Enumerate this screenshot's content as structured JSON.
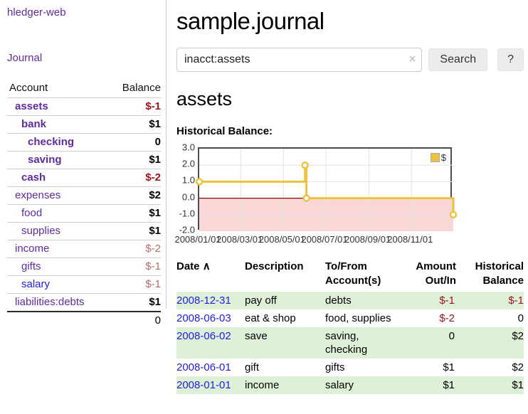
{
  "app": {
    "brand": "hledger-web",
    "nav_journal": "Journal"
  },
  "sidebar": {
    "header": {
      "account": "Account",
      "balance": "Balance"
    },
    "rows": [
      {
        "name": "assets",
        "depth": 1,
        "name_bold": true,
        "name_class": "",
        "balance": "$-1",
        "balance_bold": true,
        "balance_class": "neg-strong"
      },
      {
        "name": "bank",
        "depth": 2,
        "name_bold": true,
        "name_class": "",
        "balance": "$1",
        "balance_bold": true,
        "balance_class": ""
      },
      {
        "name": "checking",
        "depth": 3,
        "name_bold": true,
        "name_class": "",
        "balance": "0",
        "balance_bold": true,
        "balance_class": ""
      },
      {
        "name": "saving",
        "depth": 3,
        "name_bold": true,
        "name_class": "",
        "balance": "$1",
        "balance_bold": true,
        "balance_class": ""
      },
      {
        "name": "cash",
        "depth": 2,
        "name_bold": true,
        "name_class": "",
        "balance": "$-2",
        "balance_bold": true,
        "balance_class": "neg-strong"
      },
      {
        "name": "expenses",
        "depth": 1,
        "name_bold": false,
        "name_class": "",
        "balance": "$2",
        "balance_bold": true,
        "balance_class": ""
      },
      {
        "name": "food",
        "depth": 2,
        "name_bold": false,
        "name_class": "",
        "balance": "$1",
        "balance_bold": true,
        "balance_class": ""
      },
      {
        "name": "supplies",
        "depth": 2,
        "name_bold": false,
        "name_class": "",
        "balance": "$1",
        "balance_bold": true,
        "balance_class": ""
      },
      {
        "name": "income",
        "depth": 1,
        "name_bold": false,
        "name_class": "",
        "balance": "$-2",
        "balance_bold": false,
        "balance_class": "neg-muted"
      },
      {
        "name": "gifts",
        "depth": 2,
        "name_bold": false,
        "name_class": "",
        "balance": "$-1",
        "balance_bold": false,
        "balance_class": "neg-muted"
      },
      {
        "name": "salary",
        "depth": 2,
        "name_bold": false,
        "name_class": "blue",
        "balance": "$-1",
        "balance_bold": false,
        "balance_class": "neg-muted"
      },
      {
        "name": "liabilities:debts",
        "depth": 1,
        "name_bold": false,
        "name_class": "",
        "balance": "$1",
        "balance_bold": true,
        "balance_class": ""
      }
    ],
    "total": "0"
  },
  "main": {
    "title": "sample.journal",
    "search": {
      "value": "inacct:assets",
      "clear_icon": "×",
      "button_label": "Search",
      "help_label": "?"
    },
    "account_heading": "assets",
    "chart_label": "Historical Balance:"
  },
  "chart_data": {
    "type": "line",
    "title": "Historical Balance",
    "line_style": "steps",
    "series": [
      {
        "name": "$",
        "points": [
          [
            "2008-01-01",
            1
          ],
          [
            "2008-06-01",
            2
          ],
          [
            "2008-06-03",
            0
          ],
          [
            "2008-12-31",
            -1
          ]
        ]
      }
    ],
    "xlim": [
      "2008-01-01",
      "2008-12-31"
    ],
    "ylim": [
      -2.0,
      3.0
    ],
    "yticks": [
      "3.0",
      "2.0",
      "1.0",
      "0.0",
      "-1.0",
      "-2.0"
    ],
    "xticks": [
      "2008/01/01",
      "2008/03/01",
      "2008/05/01",
      "2008/07/01",
      "2008/09/01",
      "2008/11/01"
    ],
    "legend": {
      "label": "$",
      "position": "top-right"
    },
    "grid": true,
    "colors": {
      "line": "#edc240",
      "marker_fill": "#ffffff",
      "negative_region": "#f9d7d7",
      "zero_line": "#8b0d0d",
      "gridline": "#e4e4e4"
    }
  },
  "register": {
    "sort_icon": "∧",
    "headers": {
      "date": "Date",
      "description": "Description",
      "accounts": "To/From Account(s)",
      "amount": "Amount Out/In",
      "balance": "Historical Balance"
    },
    "rows": [
      {
        "date": "2008-12-31",
        "description": "pay off",
        "accounts": "debts",
        "amount": "$-1",
        "amount_neg": true,
        "balance": "$-1",
        "balance_neg": true
      },
      {
        "date": "2008-06-03",
        "description": "eat & shop",
        "accounts": "food, supplies",
        "amount": "$-2",
        "amount_neg": true,
        "balance": "0",
        "balance_neg": false
      },
      {
        "date": "2008-06-02",
        "description": "save",
        "accounts": "saving, checking",
        "amount": "0",
        "amount_neg": false,
        "balance": "$2",
        "balance_neg": false
      },
      {
        "date": "2008-06-01",
        "description": "gift",
        "accounts": "gifts",
        "amount": "$1",
        "amount_neg": false,
        "balance": "$2",
        "balance_neg": false
      },
      {
        "date": "2008-01-01",
        "description": "income",
        "accounts": "salary",
        "amount": "$1",
        "amount_neg": false,
        "balance": "$1",
        "balance_neg": false
      }
    ]
  }
}
